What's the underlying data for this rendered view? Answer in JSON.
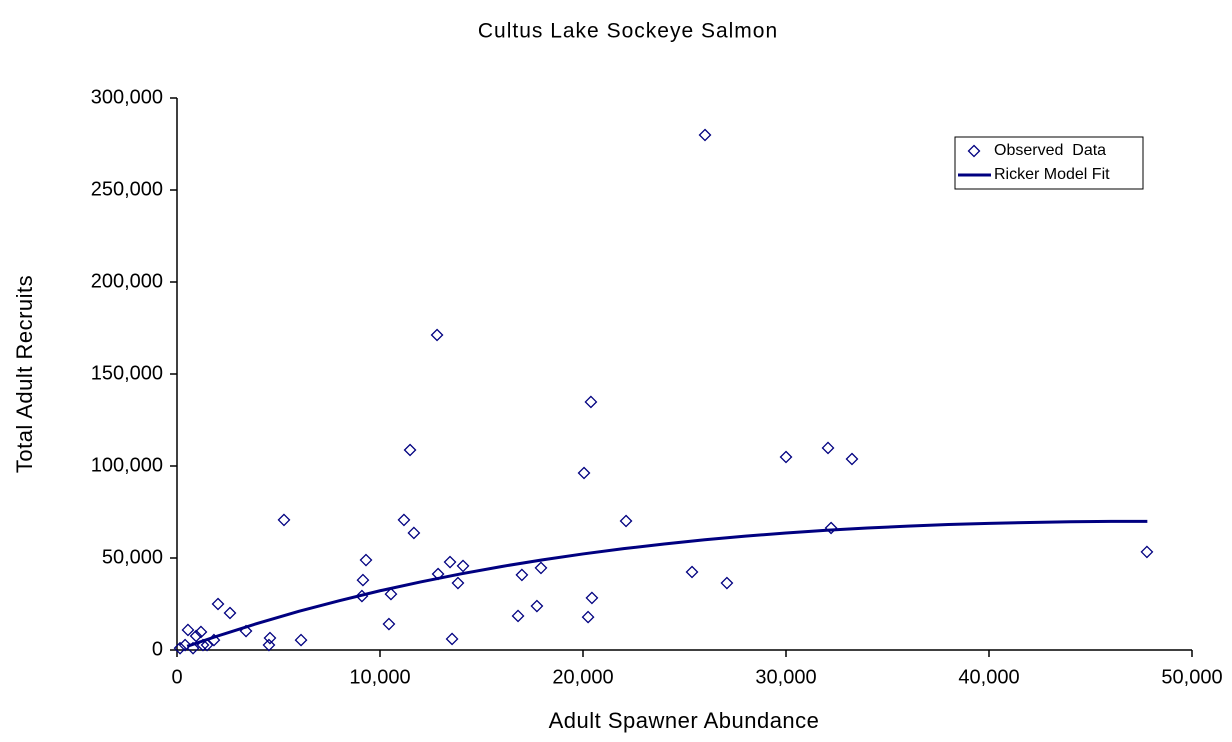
{
  "chart_data": {
    "type": "scatter",
    "title": "Cultus Lake Sockeye Salmon",
    "xlabel": "Adult Spawner Abundance",
    "ylabel": "Total Adult Recruits",
    "xlim": [
      0,
      50000
    ],
    "ylim": [
      0,
      300000
    ],
    "xticks": [
      0,
      {
        "value": 10000,
        "label": "10,000"
      },
      {
        "value": 20000,
        "label": "20,000"
      },
      {
        "value": 30000,
        "label": "30,000"
      },
      {
        "value": 40000,
        "label": "40,000"
      },
      {
        "value": 50000,
        "label": "50,000"
      }
    ],
    "yticks": [
      0,
      {
        "value": 50000,
        "label": "50,000"
      },
      {
        "value": 100000,
        "label": "100,000"
      },
      {
        "value": 150000,
        "label": "150,000"
      },
      {
        "value": 200000,
        "label": "200,000"
      },
      {
        "value": 250000,
        "label": "250,000"
      },
      {
        "value": 300000,
        "label": "300,000"
      }
    ],
    "legend": "upper right",
    "series": [
      {
        "name": "Observed  Data",
        "color": "#000080",
        "kind": "scatter",
        "x": [
          150,
          400,
          540,
          790,
          940,
          1180,
          1280,
          1480,
          1820,
          2020,
          2610,
          3400,
          4580,
          4530,
          5270,
          6110,
          9110,
          9160,
          9310,
          10440,
          10540,
          11180,
          11480,
          11670,
          12810,
          12860,
          13450,
          13550,
          13840,
          14090,
          16800,
          16990,
          17730,
          17930,
          20050,
          20250,
          20390,
          20440,
          22120,
          25370,
          26010,
          27090,
          30000,
          32070,
          32220,
          33250,
          47780
        ],
        "values": [
          1000,
          2700,
          10900,
          1000,
          7600,
          9800,
          2700,
          2700,
          5400,
          25000,
          20100,
          10300,
          6500,
          2700,
          70700,
          5400,
          29300,
          38000,
          48900,
          14100,
          30400,
          70700,
          108700,
          63600,
          171200,
          41300,
          47800,
          6000,
          36400,
          45700,
          18500,
          40800,
          23900,
          44600,
          96200,
          17900,
          134800,
          28300,
          70100,
          42400,
          279900,
          36400,
          104900,
          109800,
          66300,
          103800,
          53300
        ]
      },
      {
        "name": "Ricker Model Fit",
        "color": "#000080",
        "kind": "line",
        "x": [
          500,
          2000,
          4000,
          6000,
          8000,
          10000,
          12000,
          14000,
          16000,
          18000,
          20000,
          22000,
          24000,
          26000,
          28000,
          30000,
          32000,
          34000,
          36000,
          38000,
          40000,
          42000,
          44000,
          46000,
          47800
        ],
        "values": [
          2000,
          7600,
          14600,
          21000,
          26800,
          32200,
          37000,
          41400,
          45400,
          49000,
          52200,
          55100,
          57600,
          59900,
          61900,
          63600,
          65100,
          66300,
          67300,
          68200,
          68800,
          69300,
          69700,
          69900,
          69900
        ]
      }
    ]
  }
}
